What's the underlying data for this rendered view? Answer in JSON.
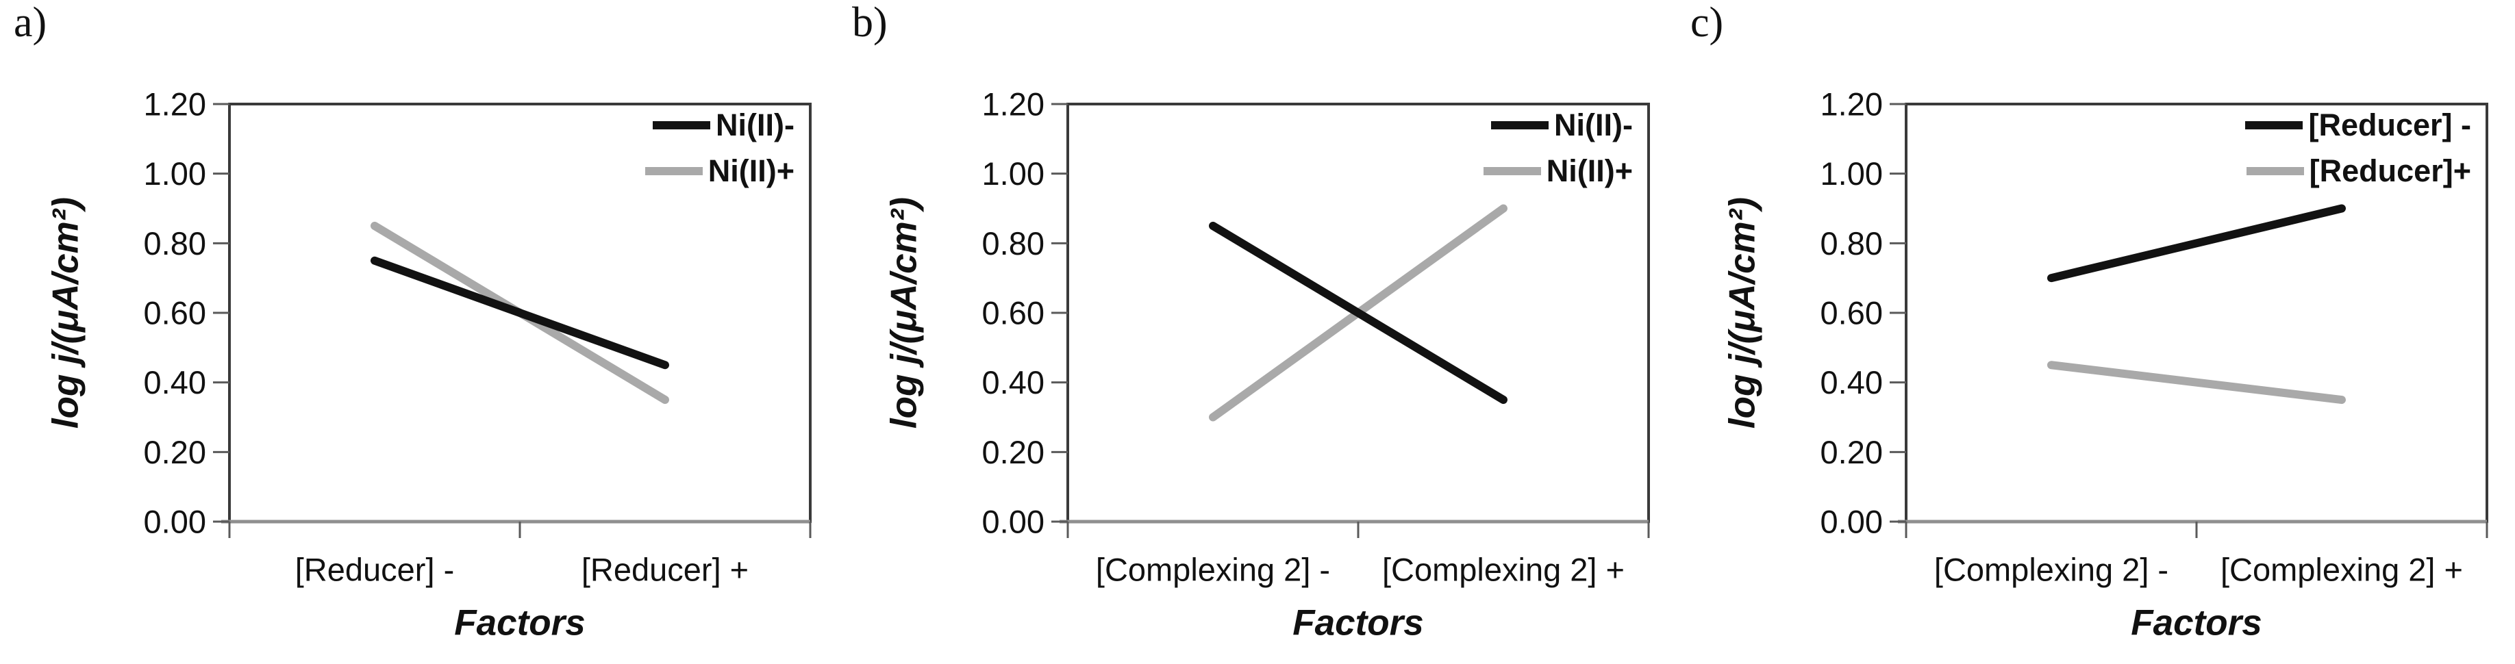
{
  "figure": {
    "background": "#ffffff",
    "panel_labels": [
      "a)",
      "b)",
      "c)"
    ]
  },
  "colors": {
    "series_black": "#121212",
    "series_gray": "#a9a9a9",
    "plot_border": "#3a3a3a",
    "bottom_axis": "#8f8f8f",
    "tick": "#5a5a5a",
    "text": "#111111"
  },
  "chart_data": [
    {
      "type": "line",
      "panel_label": "a)",
      "title": "",
      "categories": [
        "[Reducer] -",
        "[Reducer] +"
      ],
      "series": [
        {
          "name": "Ni(II)-",
          "color": "#121212",
          "values": [
            0.75,
            0.45
          ]
        },
        {
          "name": "Ni(II)+",
          "color": "#a9a9a9",
          "values": [
            0.85,
            0.35
          ]
        }
      ],
      "xlabel": "Factors",
      "ylabel": "log j/(μA/cm²)",
      "ylim": [
        0.0,
        1.2
      ],
      "ytick_values": [
        0.0,
        0.2,
        0.4,
        0.6,
        0.8,
        1.0,
        1.2
      ],
      "ytick_labels": [
        "0.00",
        "0.20",
        "0.40",
        "0.60",
        "0.80",
        "1.00",
        "1.20"
      ],
      "grid": false,
      "legend_position": "top-right"
    },
    {
      "type": "line",
      "panel_label": "b)",
      "title": "",
      "categories": [
        "[Complexing 2] -",
        "[Complexing 2] +"
      ],
      "series": [
        {
          "name": "Ni(II)-",
          "color": "#121212",
          "values": [
            0.85,
            0.35
          ]
        },
        {
          "name": "Ni(II)+",
          "color": "#a9a9a9",
          "values": [
            0.3,
            0.9
          ]
        }
      ],
      "xlabel": "Factors",
      "ylabel": "log j/(μA/cm²)",
      "ylim": [
        0.0,
        1.2
      ],
      "ytick_values": [
        0.0,
        0.2,
        0.4,
        0.6,
        0.8,
        1.0,
        1.2
      ],
      "ytick_labels": [
        "0.00",
        "0.20",
        "0.40",
        "0.60",
        "0.80",
        "1.00",
        "1.20"
      ],
      "grid": false,
      "legend_position": "top-right"
    },
    {
      "type": "line",
      "panel_label": "c)",
      "title": "",
      "categories": [
        "[Complexing 2] -",
        "[Complexing 2] +"
      ],
      "series": [
        {
          "name": "[Reducer] -",
          "color": "#121212",
          "values": [
            0.7,
            0.9
          ]
        },
        {
          "name": "[Reducer]+",
          "color": "#a9a9a9",
          "values": [
            0.45,
            0.35
          ]
        }
      ],
      "xlabel": "Factors",
      "ylabel": "log j/(μA/cm²)",
      "ylim": [
        0.0,
        1.2
      ],
      "ytick_values": [
        0.0,
        0.2,
        0.4,
        0.6,
        0.8,
        1.0,
        1.2
      ],
      "ytick_labels": [
        "0.00",
        "0.20",
        "0.40",
        "0.60",
        "0.80",
        "1.00",
        "1.20"
      ],
      "grid": false,
      "legend_position": "top-right"
    }
  ]
}
